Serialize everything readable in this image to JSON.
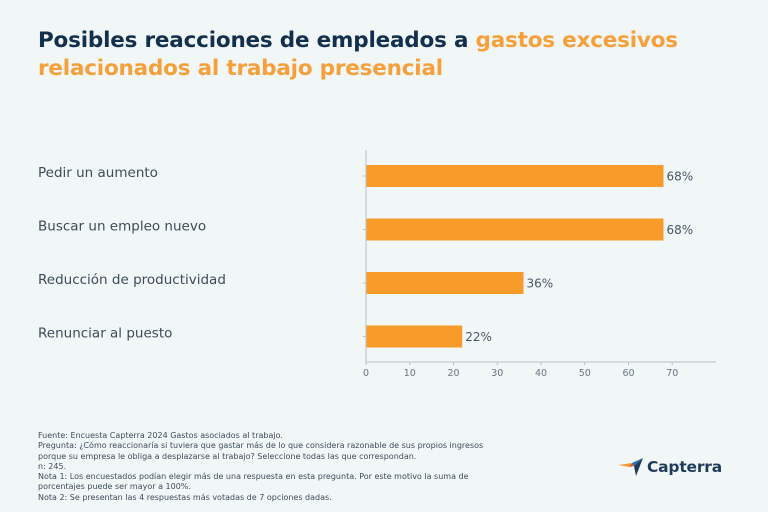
{
  "chart_data": {
    "type": "bar",
    "orientation": "horizontal",
    "title": "Posibles reacciones de empleados a gastos excesivos relacionados al trabajo presencial",
    "title_parts": {
      "dark": "Posibles reacciones de empleados a ",
      "highlight": "gastos excesivos relacionados al trabajo presencial"
    },
    "categories": [
      "Pedir un aumento",
      "Buscar un empleo nuevo",
      "Reducción de productividad",
      "Renunciar al puesto"
    ],
    "values": [
      68,
      68,
      36,
      22
    ],
    "value_labels": [
      "68%",
      "68%",
      "36%",
      "22%"
    ],
    "xlabel": "",
    "ylabel": "",
    "xlim": [
      0,
      80
    ],
    "xticks": [
      0,
      10,
      20,
      30,
      40,
      50,
      60,
      70
    ],
    "xtick_labels": [
      "0",
      "10",
      "20",
      "30",
      "40",
      "50",
      "60",
      "70"
    ],
    "grid": false,
    "legend": "none",
    "colors": {
      "bar": "#f99b2a",
      "title_dark": "#12304d",
      "title_highlight": "#f5a03a",
      "background": "#f1f6f7"
    }
  },
  "notes": [
    "Fuente: Encuesta Capterra 2024 Gastos asociados al trabajo.",
    "Pregunta: ¿Cómo reaccionaría si tuviera que gastar más de lo que considera razonable de sus propios ingresos",
    "porque su empresa le obliga a desplazarse al trabajo? Seleccione todas las que correspondan.",
    "n: 245.",
    "Nota 1: Los encuestados podían elegir más de una respuesta en esta pregunta. Por este motivo la suma de",
    "porcentajes puede ser mayor a 100%.",
    "Nota 2: Se presentan las 4 respuestas más votadas de 7 opciones dadas."
  ],
  "logo": {
    "text": "Capterra",
    "icon": "capterra-arrow-icon"
  }
}
